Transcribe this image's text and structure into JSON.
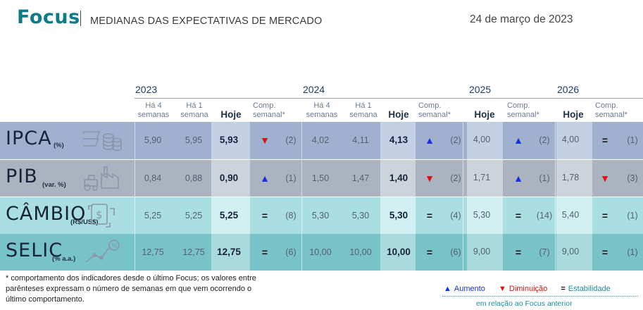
{
  "header": {
    "brand": "Focus",
    "subtitle": "MEDIANAS DAS EXPECTATIVAS DE MERCADO",
    "date": "24 de março de 2023"
  },
  "years": [
    "2023",
    "2024",
    "2025",
    "2026"
  ],
  "column_headers": {
    "ha4": "Há 4 semanas",
    "ha1": "Há 1 semana",
    "hoje": "Hoje",
    "comp": "Comp. semanal*"
  },
  "indicators": [
    {
      "name": "IPCA",
      "unit": "(%)",
      "icon": "coins-icon",
      "y2023": {
        "ha4": "5,90",
        "ha1": "5,95",
        "hoje": "5,93",
        "dir": "down",
        "weeks": "(2)"
      },
      "y2024": {
        "ha4": "4,02",
        "ha1": "4,11",
        "hoje": "4,13",
        "dir": "up",
        "weeks": "(2)"
      },
      "y2025": {
        "hoje": "4,00",
        "dir": "up",
        "weeks": "(2)"
      },
      "y2026": {
        "hoje": "4,00",
        "dir": "eq",
        "weeks": "(1)"
      }
    },
    {
      "name": "PIB",
      "unit": "(var. %)",
      "icon": "factory-tractor-icon",
      "y2023": {
        "ha4": "0,84",
        "ha1": "0,88",
        "hoje": "0,90",
        "dir": "up",
        "weeks": "(1)"
      },
      "y2024": {
        "ha4": "1,50",
        "ha1": "1,47",
        "hoje": "1,40",
        "dir": "down",
        "weeks": "(2)"
      },
      "y2025": {
        "hoje": "1,71",
        "dir": "up",
        "weeks": "(1)"
      },
      "y2026": {
        "hoje": "1,78",
        "dir": "down",
        "weeks": "(3)"
      }
    },
    {
      "name": "CÂMBIO",
      "unit": "(R$/US$)",
      "icon": "exchange-icon",
      "y2023": {
        "ha4": "5,25",
        "ha1": "5,25",
        "hoje": "5,25",
        "dir": "eq",
        "weeks": "(8)"
      },
      "y2024": {
        "ha4": "5,30",
        "ha1": "5,30",
        "hoje": "5,30",
        "dir": "eq",
        "weeks": "(4)"
      },
      "y2025": {
        "hoje": "5,30",
        "dir": "eq",
        "weeks": "(14)"
      },
      "y2026": {
        "hoje": "5,40",
        "dir": "eq",
        "weeks": "(1)"
      }
    },
    {
      "name": "SELIC",
      "unit": "(% a.a.)",
      "icon": "rate-chart-icon",
      "y2023": {
        "ha4": "12,75",
        "ha1": "12,75",
        "hoje": "12,75",
        "dir": "eq",
        "weeks": "(6)"
      },
      "y2024": {
        "ha4": "10,00",
        "ha1": "10,00",
        "hoje": "10,00",
        "dir": "eq",
        "weeks": "(6)"
      },
      "y2025": {
        "hoje": "9,00",
        "dir": "eq",
        "weeks": "(7)"
      },
      "y2026": {
        "hoje": "9,00",
        "dir": "eq",
        "weeks": "(1)"
      }
    }
  ],
  "symbols": {
    "up": "▲",
    "down": "▼",
    "eq": "="
  },
  "footnote": "* comportamento dos indicadores desde o último Focus; os valores entre parênteses expressam o número de semanas em que vem ocorrendo o último comportamento.",
  "legend": {
    "up": "Aumento",
    "down": "Diminuição",
    "eq": "Estabilidade",
    "sub": "em relação ao Focus anterior"
  },
  "colors": {
    "brand": "#0e7c86",
    "ipca_row": "#9fb1cf",
    "ipca_today": "#c4d0e4",
    "pib_row": "#aab3bf",
    "pib_today": "#cdd3da",
    "cambio_row": "#a9dfe2",
    "cambio_today": "#d2eff1",
    "selic_row": "#77c3c7",
    "selic_today": "#a9dadd",
    "up": "#1a2fe0",
    "down": "#e01010"
  }
}
